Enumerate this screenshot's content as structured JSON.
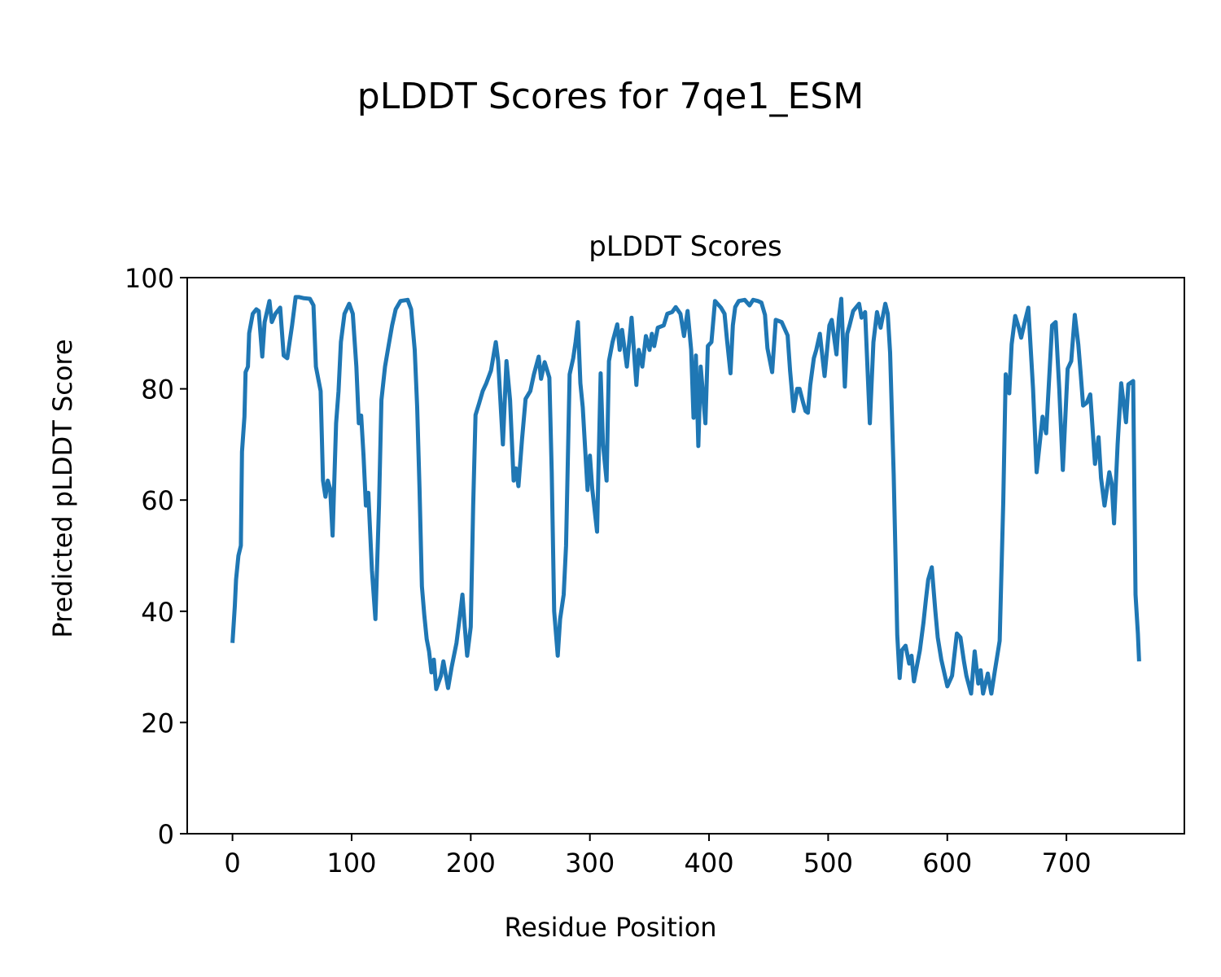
{
  "chart_data": {
    "type": "line",
    "suptitle": "pLDDT Scores for 7qe1_ESM",
    "title": "pLDDT Scores",
    "xlabel": "Residue Position",
    "ylabel": "Predicted pLDDT Score",
    "xlim": [
      -38,
      799
    ],
    "ylim": [
      0,
      100
    ],
    "xticks": [
      0,
      100,
      200,
      300,
      400,
      500,
      600,
      700
    ],
    "yticks": [
      0,
      20,
      40,
      60,
      80,
      100
    ],
    "grid": false,
    "series": [
      {
        "name": "pLDDT",
        "color": "#1f77b4",
        "x": [
          0,
          2,
          3,
          5,
          7,
          8,
          10,
          11,
          13,
          14,
          17,
          20,
          22,
          25,
          27,
          31,
          33,
          36,
          40,
          43,
          46,
          50,
          53,
          56,
          60,
          65,
          68,
          70,
          74,
          76,
          78,
          80,
          82,
          84,
          87,
          89,
          91,
          94,
          98,
          101,
          104,
          106,
          108,
          110,
          112,
          114,
          117,
          120,
          123,
          125,
          128,
          131,
          134,
          137,
          141,
          147,
          150,
          153,
          155,
          157,
          159,
          161,
          163,
          165,
          167,
          169,
          171,
          175,
          177,
          181,
          184,
          188,
          191,
          193,
          195,
          197,
          200,
          202,
          204,
          207,
          210,
          213,
          217,
          221,
          223,
          227,
          230,
          233,
          236,
          238,
          240,
          243,
          246,
          250,
          253,
          257,
          259,
          262,
          266,
          268,
          270,
          273,
          275,
          278,
          280,
          283,
          286,
          288,
          290,
          292,
          294,
          298,
          300,
          302,
          306,
          309,
          311,
          314,
          316,
          319,
          323,
          325,
          327,
          331,
          335,
          339,
          341,
          344,
          347,
          350,
          352,
          354,
          357,
          362,
          365,
          369,
          372,
          376,
          379,
          382,
          385,
          387,
          389,
          391,
          393,
          397,
          399,
          402,
          405,
          410,
          413,
          415,
          418,
          420,
          422,
          425,
          430,
          434,
          437,
          441,
          444,
          447,
          449,
          453,
          456,
          461,
          466,
          468,
          471,
          474,
          476,
          479,
          481,
          483,
          485,
          488,
          490,
          493,
          497,
          501,
          503,
          507,
          509,
          511,
          514,
          516,
          518,
          521,
          526,
          528,
          531,
          535,
          538,
          541,
          544,
          548,
          550,
          552,
          555,
          558,
          560,
          562,
          565,
          568,
          570,
          572,
          577,
          580,
          582,
          584,
          587,
          590,
          592,
          595,
          600,
          604,
          608,
          611,
          614,
          616,
          620,
          623,
          626,
          628,
          630,
          634,
          637,
          640,
          644,
          647,
          649,
          652,
          654,
          657,
          660,
          662,
          665,
          668,
          672,
          675,
          680,
          683,
          688,
          691,
          694,
          697,
          701,
          704,
          707,
          710,
          712,
          714,
          717,
          720,
          724,
          727,
          729,
          732,
          736,
          738,
          740,
          743,
          746,
          750,
          752,
          756,
          758,
          760,
          761
        ],
        "y": [
          34.3,
          41,
          45.7,
          50,
          51.8,
          68.7,
          75,
          83,
          84,
          90,
          93.5,
          94.3,
          94,
          85.8,
          92,
          95.8,
          92,
          93.5,
          94.6,
          86,
          85.5,
          91.4,
          96.5,
          96.5,
          96.3,
          96.2,
          95,
          84,
          79.6,
          63.5,
          60.6,
          63.5,
          62,
          53.6,
          73.8,
          79.6,
          88.4,
          93.5,
          95.3,
          93.5,
          84,
          73.8,
          75.2,
          68,
          59,
          61.3,
          47.4,
          38.6,
          59,
          78,
          84,
          87.7,
          91.4,
          94.3,
          95.8,
          96,
          94.3,
          87,
          76.7,
          62,
          44.5,
          39.4,
          35,
          32.8,
          29,
          31.3,
          26,
          28.4,
          31,
          26.2,
          30,
          34.3,
          39.4,
          43,
          37.2,
          32,
          37.2,
          59,
          75.3,
          77.4,
          79.6,
          81,
          83.3,
          88.4,
          85,
          70,
          85,
          78,
          63.5,
          65.7,
          62.5,
          70.9,
          78.2,
          79.6,
          82.6,
          85.8,
          81.8,
          84.8,
          82,
          65,
          40,
          32,
          38.6,
          43,
          51.8,
          82.6,
          85.5,
          88.4,
          92,
          81,
          76.7,
          61.8,
          68,
          62,
          54.3,
          82.8,
          70,
          63.5,
          85,
          88.4,
          91.6,
          87,
          90.6,
          84,
          92.8,
          80.7,
          87,
          84,
          89.5,
          87,
          89.9,
          87.7,
          91,
          91.4,
          93.5,
          93.8,
          94.7,
          93.5,
          89.5,
          94,
          87,
          74.8,
          86,
          69.7,
          84,
          73.8,
          87.7,
          88.4,
          95.8,
          94.6,
          93.5,
          89,
          82.8,
          91.4,
          94.7,
          95.8,
          96,
          95,
          96,
          95.8,
          95.5,
          93.3,
          87.3,
          83,
          92.4,
          92,
          89.6,
          83.3,
          76,
          80,
          80,
          77.5,
          76,
          75.7,
          80.7,
          85.5,
          87,
          89.9,
          82.3,
          91.4,
          92.4,
          86.2,
          92.8,
          96.2,
          80.4,
          89.9,
          91.4,
          94,
          95.3,
          92.8,
          93.8,
          73.8,
          88.4,
          93.8,
          91,
          95.3,
          93.5,
          86.5,
          64.6,
          35.7,
          28,
          33,
          33.8,
          30.6,
          32,
          27.4,
          33,
          38,
          42,
          45.7,
          47.9,
          40,
          35.3,
          31.3,
          26.5,
          28.4,
          36,
          35.3,
          31,
          28.4,
          25.2,
          32.8,
          27,
          29.4,
          25.2,
          28.8,
          25.2,
          29.4,
          34.7,
          59.6,
          82.6,
          79.2,
          88,
          93.1,
          91,
          89.2,
          92,
          94.6,
          80,
          65,
          75,
          72,
          91.4,
          92,
          80,
          65.4,
          83.6,
          85,
          93.3,
          88,
          82.6,
          77,
          77.5,
          79,
          66.5,
          71.3,
          64,
          59,
          65,
          63,
          55.8,
          70,
          81,
          74,
          80.8,
          81.4,
          43,
          36,
          31
        ]
      }
    ]
  }
}
